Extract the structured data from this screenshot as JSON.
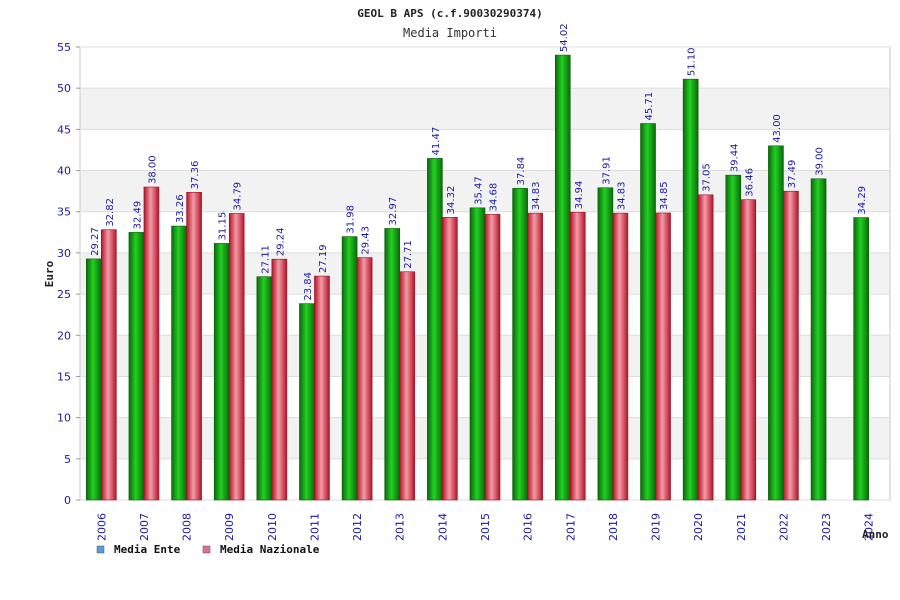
{
  "chart_data": {
    "type": "bar",
    "title": "GEOL  B APS (c.f.90030290374)",
    "subtitle": "Media Importi",
    "xlabel": "Anno",
    "ylabel": "Euro",
    "ylim": [
      0,
      55
    ],
    "yticks": [
      0,
      5,
      10,
      15,
      20,
      25,
      30,
      35,
      40,
      45,
      50,
      55
    ],
    "grid": true,
    "legend_position": "bottom-left",
    "categories": [
      "2006",
      "2007",
      "2008",
      "2009",
      "2010",
      "2011",
      "2012",
      "2013",
      "2014",
      "2015",
      "2016",
      "2017",
      "2018",
      "2019",
      "2020",
      "2021",
      "2022",
      "2023",
      "2024"
    ],
    "series": [
      {
        "name": "Media Ente",
        "legend_color": "#5b9bd5",
        "bar_color": "#1aa81a",
        "values": [
          29.27,
          32.49,
          33.26,
          31.15,
          27.11,
          23.84,
          31.98,
          32.97,
          41.47,
          35.47,
          37.84,
          54.02,
          37.91,
          45.71,
          51.1,
          39.44,
          43.0,
          39.0,
          34.29
        ],
        "labels": [
          "29.27",
          "32.49",
          "33.26",
          "31.15",
          "27.11",
          "23.84",
          "31.98",
          "32.97",
          "41.47",
          "35.47",
          "37.84",
          "54.02",
          "37.91",
          "45.71",
          "51.10",
          "39.44",
          "43.00",
          "39.00",
          "34.29"
        ]
      },
      {
        "name": "Media Nazionale",
        "legend_color": "#e07090",
        "bar_color": "#e0404f",
        "values": [
          32.82,
          38.0,
          37.36,
          34.79,
          29.24,
          27.19,
          29.43,
          27.71,
          34.32,
          34.68,
          34.83,
          34.94,
          34.83,
          34.85,
          37.05,
          36.46,
          37.49,
          null,
          null
        ],
        "labels": [
          "32.82",
          "38.00",
          "37.36",
          "34.79",
          "29.24",
          "27.19",
          "29.43",
          "27.71",
          "34.32",
          "34.68",
          "34.83",
          "34.94",
          "34.83",
          "34.85",
          "37.05",
          "36.46",
          "37.49",
          null,
          null
        ]
      }
    ]
  }
}
